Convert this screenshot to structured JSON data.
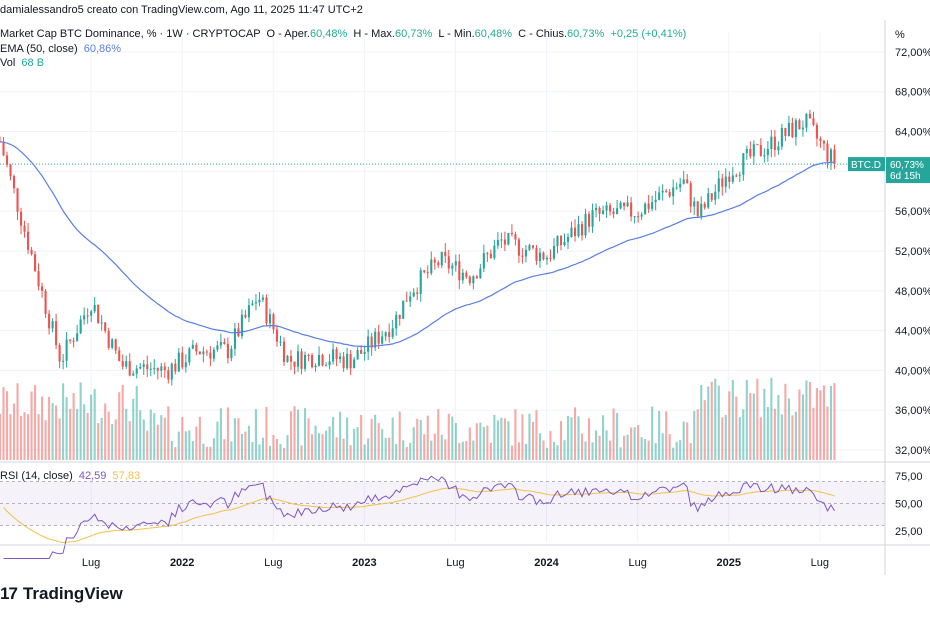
{
  "header": {
    "top": "damialessandro5 creato con TradingView.com, Ago 11, 2025 11:47 UTC+2",
    "symbol": "Market Cap BTC Dominance, % · 1W · CRYPTOCAP",
    "o_label": "O - Aper.",
    "o_val": "60,48%",
    "h_label": "H - Max.",
    "h_val": "60,73%",
    "l_label": "L - Min.",
    "l_val": "60,48%",
    "c_label": "C - Chius.",
    "c_val": "60,73%",
    "change": "+0,25 (+0,41%)",
    "ema_label": "EMA (50, close)",
    "ema_val": "60,86%",
    "vol_label": "Vol",
    "vol_val": "68 B",
    "rsi_label": "RSI (14, close)",
    "rsi_val": "42,59",
    "rsi_ma_val": "57,83"
  },
  "brand": {
    "name": "TradingView",
    "logo": "17"
  },
  "colors": {
    "up": "#26a69a",
    "down": "#ef5350",
    "ema": "#5b7fe0",
    "rsi": "#7e57c2",
    "rsi_ma": "#f0c24a"
  },
  "chart_data": {
    "type": "candlestick",
    "title": "Market Cap BTC Dominance, % · 1W · CRYPTOCAP",
    "price_axis": {
      "unit": "%",
      "ticks": [
        "72,00%",
        "68,00%",
        "64,00%",
        "60,00%",
        "56,00%",
        "52,00%",
        "48,00%",
        "44,00%",
        "40,00%",
        "36,00%",
        "32,00%"
      ],
      "ylim": [
        31,
        74
      ]
    },
    "last_price_label": {
      "symbol": "BTC.D",
      "price": "60,73%",
      "countdown": "6d 15h"
    },
    "x_ticks": [
      "Lug",
      "2022",
      "Lug",
      "2023",
      "Lug",
      "2024",
      "Lug",
      "2025",
      "Lug"
    ],
    "rsi_ticks": [
      "75,00",
      "50,00",
      "25,00"
    ],
    "rsi_bands": [
      30,
      70
    ],
    "key_points": [
      {
        "date": "2021-01",
        "close": 63.0
      },
      {
        "date": "2021-05",
        "close": 41.0
      },
      {
        "date": "2021-07",
        "close": 47.0
      },
      {
        "date": "2021-09",
        "close": 40.5
      },
      {
        "date": "2021-12",
        "close": 40.0
      },
      {
        "date": "2022-02",
        "close": 42.0
      },
      {
        "date": "2022-04",
        "close": 42.0
      },
      {
        "date": "2022-06",
        "close": 47.5
      },
      {
        "date": "2022-08",
        "close": 41.0
      },
      {
        "date": "2022-10",
        "close": 41.5
      },
      {
        "date": "2022-12",
        "close": 41.0
      },
      {
        "date": "2023-01",
        "close": 42.0
      },
      {
        "date": "2023-03",
        "close": 45.0
      },
      {
        "date": "2023-04",
        "close": 48.0
      },
      {
        "date": "2023-06",
        "close": 51.0
      },
      {
        "date": "2023-08",
        "close": 49.5
      },
      {
        "date": "2023-10",
        "close": 53.0
      },
      {
        "date": "2024-01",
        "close": 51.5
      },
      {
        "date": "2024-04",
        "close": 55.5
      },
      {
        "date": "2024-07",
        "close": 56.0
      },
      {
        "date": "2024-10",
        "close": 59.0
      },
      {
        "date": "2024-11",
        "close": 55.5
      },
      {
        "date": "2025-01",
        "close": 60.0
      },
      {
        "date": "2025-03",
        "close": 62.0
      },
      {
        "date": "2025-06",
        "close": 65.0
      },
      {
        "date": "2025-08",
        "close": 60.73
      }
    ]
  }
}
